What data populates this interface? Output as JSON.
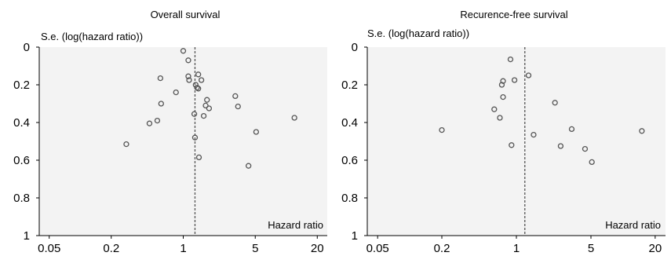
{
  "chart_data": [
    {
      "type": "scatter",
      "title": "Overall survival",
      "ylabel": "S.e. (log(hazard ratio))",
      "xlabel": "Hazard ratio",
      "x_scale": "log",
      "xlim": [
        0.04,
        25
      ],
      "ylim": [
        1,
        0
      ],
      "x_ticks": [
        {
          "value": 0.05,
          "label": "0.05"
        },
        {
          "value": 0.2,
          "label": "0.2"
        },
        {
          "value": 1,
          "label": "1"
        },
        {
          "value": 5,
          "label": "5"
        },
        {
          "value": 20,
          "label": "20"
        }
      ],
      "y_ticks": [
        {
          "value": 0,
          "label": "0"
        },
        {
          "value": 0.2,
          "label": "0.2"
        },
        {
          "value": 0.4,
          "label": "0.4"
        },
        {
          "value": 0.6,
          "label": "0.6"
        },
        {
          "value": 0.8,
          "label": "0.8"
        },
        {
          "value": 1,
          "label": "1"
        }
      ],
      "reference_line_x": 1.3,
      "grid": false,
      "points": [
        {
          "x": 1.0,
          "y": 0.02
        },
        {
          "x": 1.12,
          "y": 0.07
        },
        {
          "x": 1.12,
          "y": 0.155
        },
        {
          "x": 1.14,
          "y": 0.175
        },
        {
          "x": 1.4,
          "y": 0.145
        },
        {
          "x": 1.5,
          "y": 0.175
        },
        {
          "x": 1.32,
          "y": 0.2
        },
        {
          "x": 1.36,
          "y": 0.215
        },
        {
          "x": 1.4,
          "y": 0.22
        },
        {
          "x": 1.7,
          "y": 0.28
        },
        {
          "x": 1.65,
          "y": 0.31
        },
        {
          "x": 1.78,
          "y": 0.325
        },
        {
          "x": 1.58,
          "y": 0.365
        },
        {
          "x": 1.28,
          "y": 0.355
        },
        {
          "x": 0.6,
          "y": 0.165
        },
        {
          "x": 0.85,
          "y": 0.24
        },
        {
          "x": 0.61,
          "y": 0.3
        },
        {
          "x": 0.56,
          "y": 0.39
        },
        {
          "x": 0.47,
          "y": 0.405
        },
        {
          "x": 0.28,
          "y": 0.515
        },
        {
          "x": 3.2,
          "y": 0.26
        },
        {
          "x": 3.4,
          "y": 0.315
        },
        {
          "x": 1.3,
          "y": 0.48
        },
        {
          "x": 1.42,
          "y": 0.585
        },
        {
          "x": 5.1,
          "y": 0.45
        },
        {
          "x": 4.3,
          "y": 0.63
        },
        {
          "x": 12.0,
          "y": 0.375
        }
      ]
    },
    {
      "type": "scatter",
      "title": "Recurence-free survival",
      "ylabel": "S.e. (log(hazard ratio))",
      "xlabel": "Hazard ratio",
      "x_scale": "log",
      "xlim": [
        0.04,
        25
      ],
      "ylim": [
        1,
        0
      ],
      "x_ticks": [
        {
          "value": 0.05,
          "label": "0.05"
        },
        {
          "value": 0.2,
          "label": "0.2"
        },
        {
          "value": 1,
          "label": "1"
        },
        {
          "value": 5,
          "label": "5"
        },
        {
          "value": 20,
          "label": "20"
        }
      ],
      "y_ticks": [
        {
          "value": 0,
          "label": "0"
        },
        {
          "value": 0.2,
          "label": "0.2"
        },
        {
          "value": 0.4,
          "label": "0.4"
        },
        {
          "value": 0.6,
          "label": "0.6"
        },
        {
          "value": 0.8,
          "label": "0.8"
        },
        {
          "value": 1,
          "label": "1"
        }
      ],
      "reference_line_x": 1.2,
      "grid": false,
      "points": [
        {
          "x": 0.88,
          "y": 0.065
        },
        {
          "x": 1.3,
          "y": 0.15
        },
        {
          "x": 0.96,
          "y": 0.175
        },
        {
          "x": 0.75,
          "y": 0.18
        },
        {
          "x": 0.73,
          "y": 0.2
        },
        {
          "x": 0.75,
          "y": 0.265
        },
        {
          "x": 2.3,
          "y": 0.295
        },
        {
          "x": 0.62,
          "y": 0.33
        },
        {
          "x": 0.7,
          "y": 0.375
        },
        {
          "x": 0.2,
          "y": 0.44
        },
        {
          "x": 3.3,
          "y": 0.435
        },
        {
          "x": 1.45,
          "y": 0.465
        },
        {
          "x": 0.9,
          "y": 0.52
        },
        {
          "x": 2.6,
          "y": 0.525
        },
        {
          "x": 4.4,
          "y": 0.54
        },
        {
          "x": 5.1,
          "y": 0.61
        },
        {
          "x": 15.0,
          "y": 0.445
        }
      ]
    }
  ]
}
